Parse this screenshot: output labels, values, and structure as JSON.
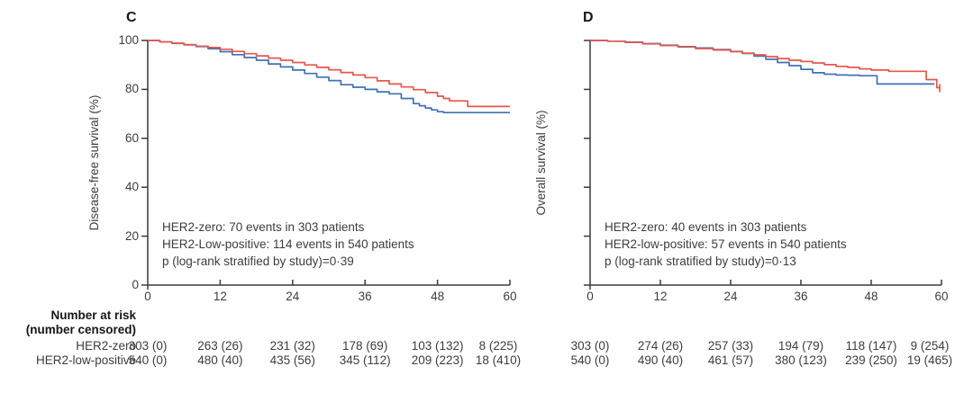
{
  "colors": {
    "her2_low_positive_line": "#e5574f",
    "her2_zero_line": "#4072b2",
    "axis": "#3a3a3a",
    "text": "#3d3d3d",
    "bold_text": "#161616"
  },
  "chart_data": [
    {
      "type": "line",
      "subtype": "kaplan-meier-step",
      "panel_label": "C",
      "ylabel": "Disease-free survival (%)",
      "xlabel": "",
      "xlim": [
        0,
        60
      ],
      "ylim": [
        0,
        100
      ],
      "x_ticks": [
        0,
        12,
        24,
        36,
        48,
        60
      ],
      "y_ticks": [
        0,
        20,
        40,
        60,
        80,
        100
      ],
      "y_tick_labels_visible": true,
      "grid": false,
      "legend": "none",
      "annotations": [
        "HER2-zero: 70 events in 303 patients",
        "HER2-Low-positive: 114 events in 540 patients",
        "p (log-rank stratified by study)=0·39"
      ],
      "series": [
        {
          "name": "HER2-zero",
          "color": "#4072b2",
          "points": [
            [
              0,
              100
            ],
            [
              2,
              99.4
            ],
            [
              4,
              98.8
            ],
            [
              6,
              98.2
            ],
            [
              8,
              97.5
            ],
            [
              10,
              96.6
            ],
            [
              12,
              95.4
            ],
            [
              14,
              94.2
            ],
            [
              16,
              93.0
            ],
            [
              18,
              91.9
            ],
            [
              20,
              90.4
            ],
            [
              22,
              89.2
            ],
            [
              24,
              87.9
            ],
            [
              26,
              86.5
            ],
            [
              28,
              85.0
            ],
            [
              30,
              83.6
            ],
            [
              32,
              81.9
            ],
            [
              34,
              80.9
            ],
            [
              36,
              80.0
            ],
            [
              38,
              79.0
            ],
            [
              40,
              78.2
            ],
            [
              42,
              76.3
            ],
            [
              44,
              74.2
            ],
            [
              45,
              73.3
            ],
            [
              46,
              72.4
            ],
            [
              47,
              71.6
            ],
            [
              48,
              70.9
            ],
            [
              49,
              70.5
            ],
            [
              60,
              70.5
            ]
          ],
          "censor_ticks": []
        },
        {
          "name": "HER2-Low-positive",
          "color": "#e5574f",
          "points": [
            [
              0,
              100
            ],
            [
              2,
              99.4
            ],
            [
              4,
              98.9
            ],
            [
              6,
              98.3
            ],
            [
              8,
              97.7
            ],
            [
              10,
              97.1
            ],
            [
              12,
              96.4
            ],
            [
              14,
              95.5
            ],
            [
              16,
              94.6
            ],
            [
              18,
              93.7
            ],
            [
              20,
              92.8
            ],
            [
              22,
              91.9
            ],
            [
              24,
              91.0
            ],
            [
              26,
              90.0
            ],
            [
              28,
              89.0
            ],
            [
              30,
              88.0
            ],
            [
              32,
              86.9
            ],
            [
              34,
              85.9
            ],
            [
              36,
              84.8
            ],
            [
              38,
              83.5
            ],
            [
              40,
              82.2
            ],
            [
              42,
              81.0
            ],
            [
              44,
              79.9
            ],
            [
              46,
              78.7
            ],
            [
              48,
              77.2
            ],
            [
              49,
              76.3
            ],
            [
              50,
              75.3
            ],
            [
              53,
              73.0
            ],
            [
              60,
              73.0
            ]
          ],
          "censor_ticks": []
        }
      ]
    },
    {
      "type": "line",
      "subtype": "kaplan-meier-step",
      "panel_label": "D",
      "ylabel": "Overall survival (%)",
      "xlabel": "",
      "xlim": [
        0,
        60
      ],
      "ylim": [
        0,
        100
      ],
      "x_ticks": [
        0,
        12,
        24,
        36,
        48,
        60
      ],
      "y_ticks": [
        0,
        20,
        40,
        60,
        80,
        100
      ],
      "y_tick_labels_visible": false,
      "grid": false,
      "legend": "none",
      "annotations": [
        "HER2-zero: 40 events in 303 patients",
        "HER2-low-positive: 57 events in 540 patients",
        "p (log-rank stratified by study)=0·13"
      ],
      "series": [
        {
          "name": "HER2-zero",
          "color": "#4072b2",
          "points": [
            [
              0,
              100
            ],
            [
              3,
              99.7
            ],
            [
              6,
              99.3
            ],
            [
              9,
              98.7
            ],
            [
              12,
              98.1
            ],
            [
              15,
              97.5
            ],
            [
              18,
              96.9
            ],
            [
              21,
              96.3
            ],
            [
              24,
              95.5
            ],
            [
              26,
              94.7
            ],
            [
              28,
              93.6
            ],
            [
              30,
              92.3
            ],
            [
              32,
              91.0
            ],
            [
              34,
              89.7
            ],
            [
              36,
              88.2
            ],
            [
              38,
              86.8
            ],
            [
              40,
              86.2
            ],
            [
              42,
              85.9
            ],
            [
              44,
              85.8
            ],
            [
              46,
              85.6
            ],
            [
              49,
              82.2
            ],
            [
              58.8,
              82.2
            ]
          ],
          "censor_ticks": []
        },
        {
          "name": "HER2-low-positive",
          "color": "#e5574f",
          "points": [
            [
              0,
              100
            ],
            [
              3,
              99.7
            ],
            [
              6,
              99.2
            ],
            [
              9,
              98.6
            ],
            [
              12,
              97.9
            ],
            [
              15,
              97.3
            ],
            [
              18,
              96.7
            ],
            [
              21,
              96.1
            ],
            [
              24,
              95.4
            ],
            [
              26,
              94.8
            ],
            [
              28,
              94.1
            ],
            [
              30,
              93.4
            ],
            [
              32,
              92.6
            ],
            [
              34,
              91.9
            ],
            [
              36,
              91.4
            ],
            [
              38,
              90.8
            ],
            [
              40,
              90.1
            ],
            [
              42,
              89.4
            ],
            [
              44,
              89.0
            ],
            [
              46,
              88.4
            ],
            [
              48,
              87.9
            ],
            [
              51,
              87.4
            ],
            [
              57.4,
              84.0
            ],
            [
              59.2,
              80.7
            ],
            [
              59.7,
              80.7
            ]
          ],
          "censor_ticks": [
            [
              59.7,
              80.7
            ]
          ]
        }
      ]
    }
  ],
  "risk_table": {
    "header_line1": "Number at risk",
    "header_line2": "(number censored)",
    "row_labels": [
      "HER2-zero",
      "HER2-low-positive"
    ],
    "panels": [
      {
        "rows": [
          [
            "303 (0)",
            "263 (26)",
            "231 (32)",
            "178 (69)",
            "103 (132)",
            "8 (225)"
          ],
          [
            "540 (0)",
            "480 (40)",
            "435 (56)",
            "345 (112)",
            "209 (223)",
            "18 (410)"
          ]
        ]
      },
      {
        "rows": [
          [
            "303 (0)",
            "274 (26)",
            "257 (33)",
            "194 (79)",
            "118 (147)",
            "9 (254)"
          ],
          [
            "540 (0)",
            "490 (40)",
            "461 (57)",
            "380 (123)",
            "239 (250)",
            "19 (465)"
          ]
        ]
      }
    ]
  }
}
